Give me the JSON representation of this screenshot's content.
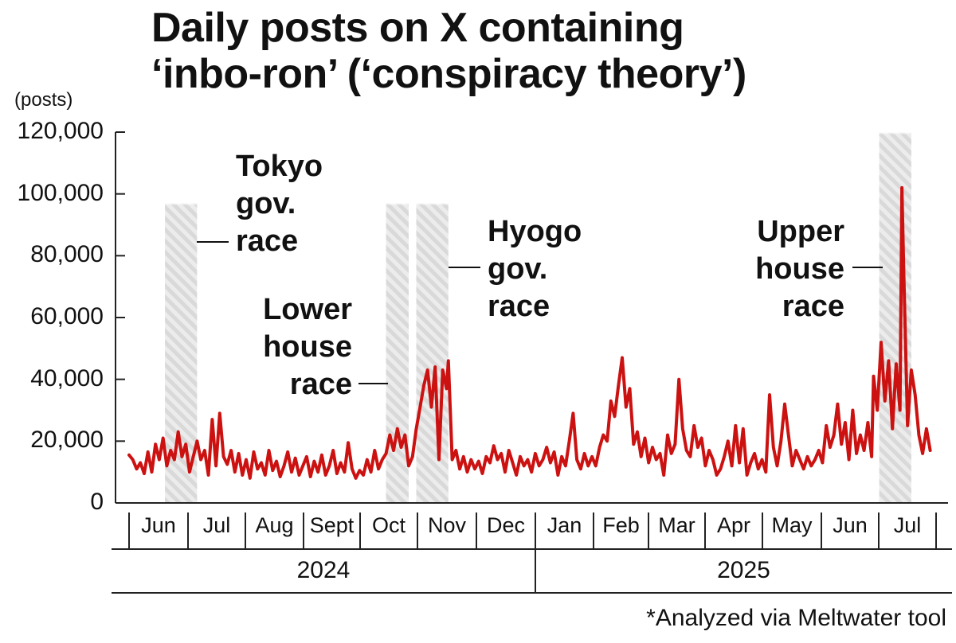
{
  "title_line1": "Daily posts on X containing",
  "title_line2": "‘inbo-ron’ (‘conspiracy theory’)",
  "unit_label": "(posts)",
  "footnote": "*Analyzed via Meltwater tool",
  "colors": {
    "line": "#cc1111",
    "shade": "#d9d9d9",
    "axis": "#222222"
  },
  "annotations": {
    "tokyo": [
      "Tokyo",
      "gov.",
      "race"
    ],
    "lower": [
      "Lower",
      "house",
      "race"
    ],
    "hyogo": [
      "Hyogo",
      "gov.",
      "race"
    ],
    "upper": [
      "Upper",
      "house",
      "race"
    ]
  },
  "chart_data": {
    "type": "line",
    "y_ticks": [
      "0",
      "20,000",
      "40,000",
      "60,000",
      "80,000",
      "100,000",
      "120,000"
    ],
    "ylim": [
      0,
      120000
    ],
    "months": [
      "Jun",
      "Jul",
      "Aug",
      "Sept",
      "Oct",
      "Nov",
      "Dec",
      "Jan",
      "Feb",
      "Mar",
      "Apr",
      "May",
      "Jun",
      "Jul"
    ],
    "years": [
      "2024",
      "2025"
    ],
    "x_start": "2024-06-01",
    "x_end": "2025-07-31",
    "shaded_periods": [
      {
        "name": "Tokyo gov. race",
        "start": "2024-06-20",
        "end": "2024-07-07"
      },
      {
        "name": "Lower house race",
        "start": "2024-10-15",
        "end": "2024-10-27"
      },
      {
        "name": "Hyogo gov. race",
        "start": "2024-10-31",
        "end": "2024-11-17"
      },
      {
        "name": "Upper house race",
        "start": "2025-07-03",
        "end": "2025-07-20"
      }
    ],
    "series": [
      {
        "points": [
          [
            "2024-06-01",
            15500
          ],
          [
            "2024-06-03",
            14000
          ],
          [
            "2024-06-05",
            11000
          ],
          [
            "2024-06-07",
            13000
          ],
          [
            "2024-06-09",
            9500
          ],
          [
            "2024-06-11",
            16500
          ],
          [
            "2024-06-13",
            10000
          ],
          [
            "2024-06-15",
            19000
          ],
          [
            "2024-06-17",
            14000
          ],
          [
            "2024-06-19",
            21000
          ],
          [
            "2024-06-21",
            12000
          ],
          [
            "2024-06-23",
            17000
          ],
          [
            "2024-06-25",
            14000
          ],
          [
            "2024-06-27",
            23000
          ],
          [
            "2024-06-29",
            15000
          ],
          [
            "2024-07-01",
            19000
          ],
          [
            "2024-07-03",
            10000
          ],
          [
            "2024-07-05",
            15000
          ],
          [
            "2024-07-07",
            20000
          ],
          [
            "2024-07-09",
            14000
          ],
          [
            "2024-07-11",
            17000
          ],
          [
            "2024-07-13",
            9000
          ],
          [
            "2024-07-15",
            27000
          ],
          [
            "2024-07-17",
            12000
          ],
          [
            "2024-07-19",
            29000
          ],
          [
            "2024-07-21",
            15000
          ],
          [
            "2024-07-23",
            12500
          ],
          [
            "2024-07-25",
            17000
          ],
          [
            "2024-07-27",
            10000
          ],
          [
            "2024-07-29",
            16000
          ],
          [
            "2024-07-31",
            9000
          ],
          [
            "2024-08-02",
            14000
          ],
          [
            "2024-08-04",
            8000
          ],
          [
            "2024-08-06",
            16500
          ],
          [
            "2024-08-08",
            11000
          ],
          [
            "2024-08-10",
            13000
          ],
          [
            "2024-08-12",
            9000
          ],
          [
            "2024-08-14",
            17000
          ],
          [
            "2024-08-16",
            10500
          ],
          [
            "2024-08-18",
            13500
          ],
          [
            "2024-08-20",
            8500
          ],
          [
            "2024-08-22",
            12000
          ],
          [
            "2024-08-24",
            16500
          ],
          [
            "2024-08-26",
            10000
          ],
          [
            "2024-08-28",
            14500
          ],
          [
            "2024-08-30",
            9000
          ],
          [
            "2024-09-01",
            12000
          ],
          [
            "2024-09-03",
            15000
          ],
          [
            "2024-09-05",
            8500
          ],
          [
            "2024-09-07",
            13500
          ],
          [
            "2024-09-09",
            10000
          ],
          [
            "2024-09-11",
            15500
          ],
          [
            "2024-09-13",
            9000
          ],
          [
            "2024-09-15",
            12000
          ],
          [
            "2024-09-17",
            17000
          ],
          [
            "2024-09-19",
            9500
          ],
          [
            "2024-09-21",
            13000
          ],
          [
            "2024-09-23",
            10000
          ],
          [
            "2024-09-25",
            19500
          ],
          [
            "2024-09-27",
            11000
          ],
          [
            "2024-09-29",
            8000
          ],
          [
            "2024-10-01",
            10500
          ],
          [
            "2024-10-03",
            9000
          ],
          [
            "2024-10-05",
            14000
          ],
          [
            "2024-10-07",
            10000
          ],
          [
            "2024-10-09",
            17000
          ],
          [
            "2024-10-11",
            11000
          ],
          [
            "2024-10-13",
            14000
          ],
          [
            "2024-10-15",
            16000
          ],
          [
            "2024-10-17",
            22000
          ],
          [
            "2024-10-19",
            17000
          ],
          [
            "2024-10-21",
            24000
          ],
          [
            "2024-10-23",
            18000
          ],
          [
            "2024-10-25",
            22000
          ],
          [
            "2024-10-27",
            12000
          ],
          [
            "2024-10-29",
            15000
          ],
          [
            "2024-10-31",
            24000
          ],
          [
            "2024-11-02",
            31000
          ],
          [
            "2024-11-04",
            38000
          ],
          [
            "2024-11-06",
            43000
          ],
          [
            "2024-11-08",
            31000
          ],
          [
            "2024-11-10",
            44000
          ],
          [
            "2024-11-12",
            14000
          ],
          [
            "2024-11-14",
            43000
          ],
          [
            "2024-11-16",
            37000
          ],
          [
            "2024-11-17",
            46000
          ],
          [
            "2024-11-19",
            14000
          ],
          [
            "2024-11-21",
            17000
          ],
          [
            "2024-11-23",
            11000
          ],
          [
            "2024-11-25",
            15000
          ],
          [
            "2024-11-27",
            10000
          ],
          [
            "2024-11-29",
            14000
          ],
          [
            "2024-12-01",
            11000
          ],
          [
            "2024-12-03",
            13500
          ],
          [
            "2024-12-05",
            9500
          ],
          [
            "2024-12-07",
            15000
          ],
          [
            "2024-12-09",
            13000
          ],
          [
            "2024-12-11",
            18500
          ],
          [
            "2024-12-13",
            14000
          ],
          [
            "2024-12-15",
            16000
          ],
          [
            "2024-12-17",
            10000
          ],
          [
            "2024-12-19",
            17000
          ],
          [
            "2024-12-21",
            13000
          ],
          [
            "2024-12-23",
            9000
          ],
          [
            "2024-12-25",
            15000
          ],
          [
            "2024-12-27",
            12000
          ],
          [
            "2024-12-29",
            14000
          ],
          [
            "2024-12-31",
            10000
          ],
          [
            "2025-01-02",
            16000
          ],
          [
            "2025-01-04",
            12000
          ],
          [
            "2025-01-06",
            14000
          ],
          [
            "2025-01-08",
            18000
          ],
          [
            "2025-01-10",
            13000
          ],
          [
            "2025-01-12",
            16500
          ],
          [
            "2025-01-14",
            9000
          ],
          [
            "2025-01-16",
            15000
          ],
          [
            "2025-01-18",
            12000
          ],
          [
            "2025-01-20",
            20000
          ],
          [
            "2025-01-22",
            29000
          ],
          [
            "2025-01-24",
            14000
          ],
          [
            "2025-01-26",
            11000
          ],
          [
            "2025-01-28",
            16000
          ],
          [
            "2025-01-30",
            12000
          ],
          [
            "2025-02-01",
            15000
          ],
          [
            "2025-02-03",
            12000
          ],
          [
            "2025-02-05",
            18000
          ],
          [
            "2025-02-07",
            22000
          ],
          [
            "2025-02-09",
            20000
          ],
          [
            "2025-02-11",
            33000
          ],
          [
            "2025-02-13",
            28000
          ],
          [
            "2025-02-15",
            38000
          ],
          [
            "2025-02-17",
            47000
          ],
          [
            "2025-02-19",
            31000
          ],
          [
            "2025-02-21",
            37000
          ],
          [
            "2025-02-23",
            19000
          ],
          [
            "2025-02-25",
            23000
          ],
          [
            "2025-02-27",
            15000
          ],
          [
            "2025-03-01",
            21000
          ],
          [
            "2025-03-03",
            13000
          ],
          [
            "2025-03-05",
            18000
          ],
          [
            "2025-03-07",
            14000
          ],
          [
            "2025-03-09",
            16000
          ],
          [
            "2025-03-11",
            9000
          ],
          [
            "2025-03-13",
            22000
          ],
          [
            "2025-03-15",
            16000
          ],
          [
            "2025-03-17",
            19000
          ],
          [
            "2025-03-19",
            40000
          ],
          [
            "2025-03-21",
            24000
          ],
          [
            "2025-03-23",
            17000
          ],
          [
            "2025-03-25",
            15000
          ],
          [
            "2025-03-27",
            25000
          ],
          [
            "2025-03-29",
            18000
          ],
          [
            "2025-03-31",
            21000
          ],
          [
            "2025-04-02",
            12000
          ],
          [
            "2025-04-04",
            17000
          ],
          [
            "2025-04-06",
            14000
          ],
          [
            "2025-04-08",
            9000
          ],
          [
            "2025-04-10",
            11000
          ],
          [
            "2025-04-12",
            15000
          ],
          [
            "2025-04-14",
            20000
          ],
          [
            "2025-04-16",
            12000
          ],
          [
            "2025-04-18",
            25000
          ],
          [
            "2025-04-20",
            13000
          ],
          [
            "2025-04-22",
            24000
          ],
          [
            "2025-04-24",
            9000
          ],
          [
            "2025-04-26",
            13000
          ],
          [
            "2025-04-28",
            16000
          ],
          [
            "2025-04-30",
            11000
          ],
          [
            "2025-05-02",
            14000
          ],
          [
            "2025-05-04",
            10000
          ],
          [
            "2025-05-06",
            35000
          ],
          [
            "2025-05-08",
            18000
          ],
          [
            "2025-05-10",
            12000
          ],
          [
            "2025-05-12",
            20000
          ],
          [
            "2025-05-14",
            32000
          ],
          [
            "2025-05-16",
            22000
          ],
          [
            "2025-05-18",
            12000
          ],
          [
            "2025-05-20",
            17000
          ],
          [
            "2025-05-22",
            14000
          ],
          [
            "2025-05-24",
            11000
          ],
          [
            "2025-05-26",
            15000
          ],
          [
            "2025-05-28",
            12000
          ],
          [
            "2025-05-30",
            14000
          ],
          [
            "2025-06-01",
            17000
          ],
          [
            "2025-06-03",
            13000
          ],
          [
            "2025-06-05",
            25000
          ],
          [
            "2025-06-07",
            18000
          ],
          [
            "2025-06-09",
            22000
          ],
          [
            "2025-06-11",
            32000
          ],
          [
            "2025-06-13",
            19000
          ],
          [
            "2025-06-15",
            26000
          ],
          [
            "2025-06-17",
            14000
          ],
          [
            "2025-06-19",
            30000
          ],
          [
            "2025-06-21",
            16000
          ],
          [
            "2025-06-23",
            22000
          ],
          [
            "2025-06-25",
            17000
          ],
          [
            "2025-06-27",
            26000
          ],
          [
            "2025-06-29",
            15000
          ],
          [
            "2025-06-30",
            41000
          ],
          [
            "2025-07-02",
            30000
          ],
          [
            "2025-07-04",
            52000
          ],
          [
            "2025-07-06",
            33000
          ],
          [
            "2025-07-08",
            46000
          ],
          [
            "2025-07-10",
            24000
          ],
          [
            "2025-07-12",
            45000
          ],
          [
            "2025-07-14",
            30000
          ],
          [
            "2025-07-15",
            102000
          ],
          [
            "2025-07-16",
            75000
          ],
          [
            "2025-07-18",
            25000
          ],
          [
            "2025-07-20",
            43000
          ],
          [
            "2025-07-22",
            35000
          ],
          [
            "2025-07-24",
            22000
          ],
          [
            "2025-07-26",
            16000
          ],
          [
            "2025-07-28",
            24000
          ],
          [
            "2025-07-30",
            17000
          ]
        ]
      }
    ]
  }
}
